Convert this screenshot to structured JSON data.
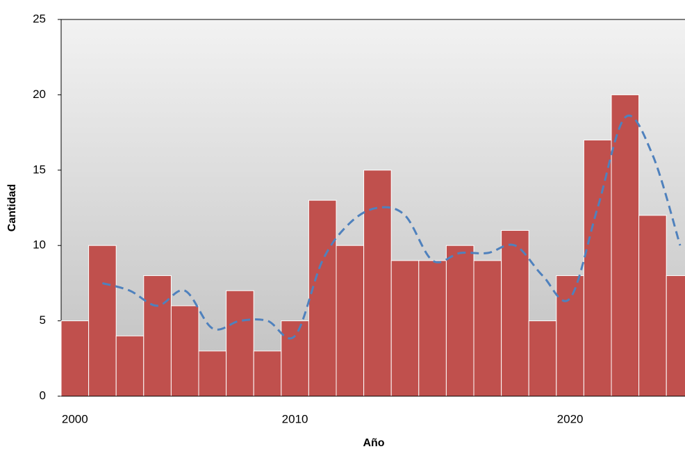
{
  "chart_data": {
    "type": "bar",
    "x_label": "Año",
    "y_label": "Cantidad",
    "categories": [
      "2000",
      null,
      null,
      null,
      null,
      null,
      null,
      null,
      "2010",
      null,
      null,
      null,
      null,
      null,
      null,
      null,
      null,
      null,
      "2020",
      null,
      null,
      null,
      null
    ],
    "series": [
      {
        "color": "#c0504d",
        "values": [
          5,
          10,
          4,
          8,
          6,
          3,
          7,
          3,
          5,
          13,
          10,
          15,
          9,
          9,
          10,
          9,
          11,
          5,
          8,
          17,
          20,
          12,
          8
        ]
      },
      {
        "color": "#4f81bd",
        "type": "line",
        "dashed": true,
        "values": [
          null,
          7.5,
          7,
          6,
          7,
          4.5,
          5,
          5,
          4,
          9,
          11.5,
          12.5,
          12,
          9,
          9.5,
          9.5,
          10,
          8,
          6.5,
          12.5,
          18.5,
          16,
          10
        ]
      }
    ],
    "ylim": [
      0,
      25
    ],
    "yticks": [
      0,
      5,
      10,
      15,
      20,
      25
    ]
  }
}
